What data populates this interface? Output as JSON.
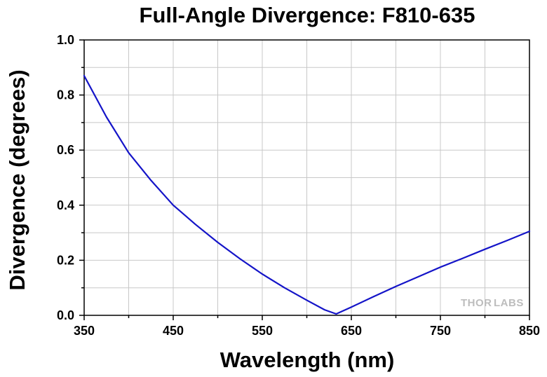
{
  "chart_data": {
    "type": "line",
    "title": "Full-Angle Divergence: F810-635",
    "xlabel": "Wavelength (nm)",
    "ylabel": "Divergence (degrees)",
    "xlim": [
      350,
      850
    ],
    "ylim": [
      0.0,
      1.0
    ],
    "x_ticks": [
      350,
      450,
      550,
      650,
      750,
      850
    ],
    "y_ticks": [
      "0.0",
      "0.2",
      "0.4",
      "0.6",
      "0.8",
      "1.0"
    ],
    "grid": true,
    "legend": "none",
    "series": [
      {
        "color": "#1414c8",
        "x": [
          350,
          375,
          400,
          425,
          450,
          475,
          500,
          525,
          550,
          575,
          600,
          620,
          633,
          650,
          675,
          700,
          725,
          750,
          775,
          800,
          825,
          850
        ],
        "y": [
          0.87,
          0.72,
          0.59,
          0.49,
          0.4,
          0.33,
          0.265,
          0.205,
          0.15,
          0.1,
          0.055,
          0.02,
          0.005,
          0.03,
          0.068,
          0.105,
          0.14,
          0.175,
          0.207,
          0.24,
          0.272,
          0.305
        ]
      }
    ]
  },
  "watermark": {
    "text_a": "THOR",
    "text_b": "LABS"
  }
}
